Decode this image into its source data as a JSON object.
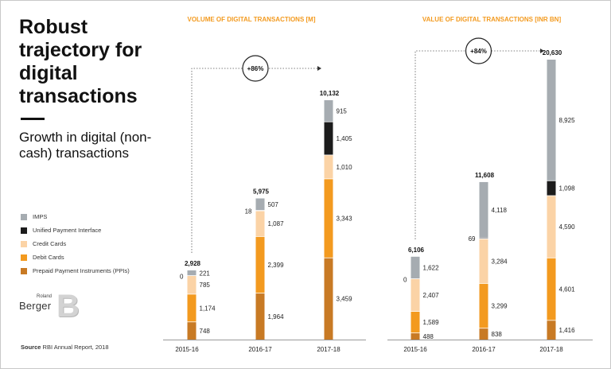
{
  "title": "Robust trajectory for digital transactions",
  "subtitle": "Growth in digital (non-cash) transactions",
  "legend": [
    {
      "label": "IMPS",
      "color": "#a6acb1"
    },
    {
      "label": "Unified Payment Interface",
      "color": "#1c1c1c"
    },
    {
      "label": "Credit Cards",
      "color": "#fbd3a6"
    },
    {
      "label": "Debit Cards",
      "color": "#f39a1f"
    },
    {
      "label": "Prepaid Payment Instruments (PPIs)",
      "color": "#c87a24"
    }
  ],
  "logo": {
    "small": "Roland",
    "big": "Berger",
    "mark": "B"
  },
  "source": {
    "prefix": "Source",
    "text": "RBI Annual Report, 2018"
  },
  "chart_data": [
    {
      "type": "bar",
      "stacked": true,
      "title": "VOLUME OF DIGITAL TRANSACTIONS [M]",
      "categories": [
        "2015-16",
        "2016-17",
        "2017-18"
      ],
      "series": [
        {
          "name": "Prepaid Payment Instruments (PPIs)",
          "values": [
            748,
            1964,
            3459
          ]
        },
        {
          "name": "Debit Cards",
          "values": [
            1174,
            2399,
            3343
          ]
        },
        {
          "name": "Credit Cards",
          "values": [
            785,
            1087,
            1010
          ]
        },
        {
          "name": "Unified Payment Interface",
          "values": [
            0,
            18,
            1405
          ]
        },
        {
          "name": "IMPS",
          "values": [
            221,
            507,
            915
          ]
        }
      ],
      "totals": [
        "2,928",
        "5,975",
        "10,132"
      ],
      "value_labels": [
        [
          "748",
          "1,964",
          "3,459"
        ],
        [
          "1,174",
          "2,399",
          "3,343"
        ],
        [
          "785",
          "1,087",
          "1,010"
        ],
        [
          "0",
          "18",
          "1,405"
        ],
        [
          "221",
          "507",
          "915"
        ]
      ],
      "growth": "+86%"
    },
    {
      "type": "bar",
      "stacked": true,
      "title": "VALUE OF DIGITAL TRANSACTIONS [INR BN]",
      "categories": [
        "2015-16",
        "2016-17",
        "2017-18"
      ],
      "series": [
        {
          "name": "Prepaid Payment Instruments (PPIs)",
          "values": [
            488,
            838,
            1416
          ]
        },
        {
          "name": "Debit Cards",
          "values": [
            1589,
            3299,
            4601
          ]
        },
        {
          "name": "Credit Cards",
          "values": [
            2407,
            3284,
            4590
          ]
        },
        {
          "name": "Unified Payment Interface",
          "values": [
            0,
            69,
            1098
          ]
        },
        {
          "name": "IMPS",
          "values": [
            1622,
            4118,
            8925
          ]
        }
      ],
      "totals": [
        "6,106",
        "11,608",
        "20,630"
      ],
      "value_labels": [
        [
          "488",
          "838",
          "1,416"
        ],
        [
          "1,589",
          "3,299",
          "4,601"
        ],
        [
          "2,407",
          "3,284",
          "4,590"
        ],
        [
          "0",
          "69",
          "1,098"
        ],
        [
          "1,622",
          "4,118",
          "8,925"
        ]
      ],
      "growth": "+84%"
    }
  ]
}
